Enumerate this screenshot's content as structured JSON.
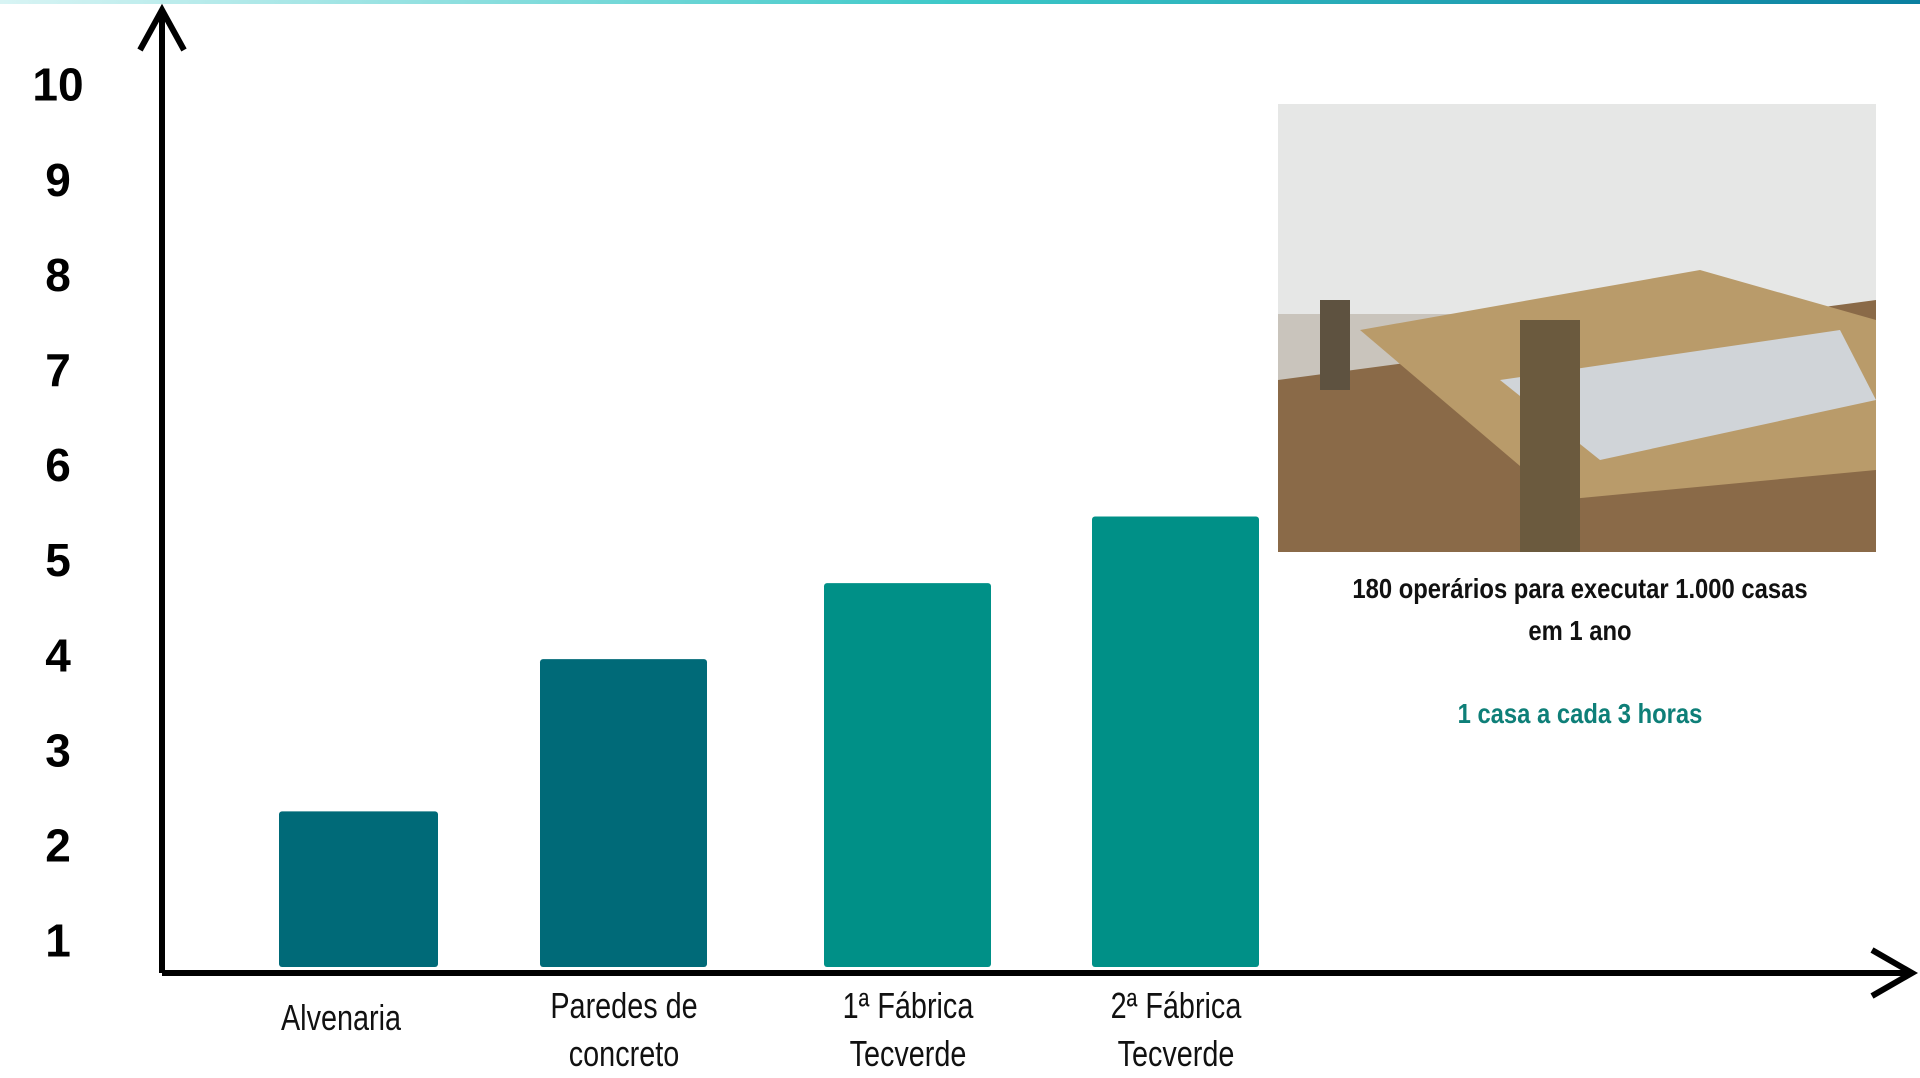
{
  "chart_data": {
    "type": "bar",
    "categories": [
      "Alvenaria",
      "Paredes de concreto",
      "1ª Fábrica Tecverde",
      "2ª Fábrica Tecverde"
    ],
    "values": [
      2.4,
      4.0,
      4.8,
      5.5
    ],
    "colors": [
      "#006a78",
      "#006a78",
      "#009087",
      "#009087"
    ],
    "ylim": [
      0.7,
      10.9
    ],
    "yticks": [
      1,
      2,
      3,
      4,
      5,
      6,
      7,
      8,
      9,
      10
    ],
    "annotations": [
      "180 operários para executar 1.000 casas em 1 ano",
      "1 casa a cada 3 horas"
    ]
  }
}
